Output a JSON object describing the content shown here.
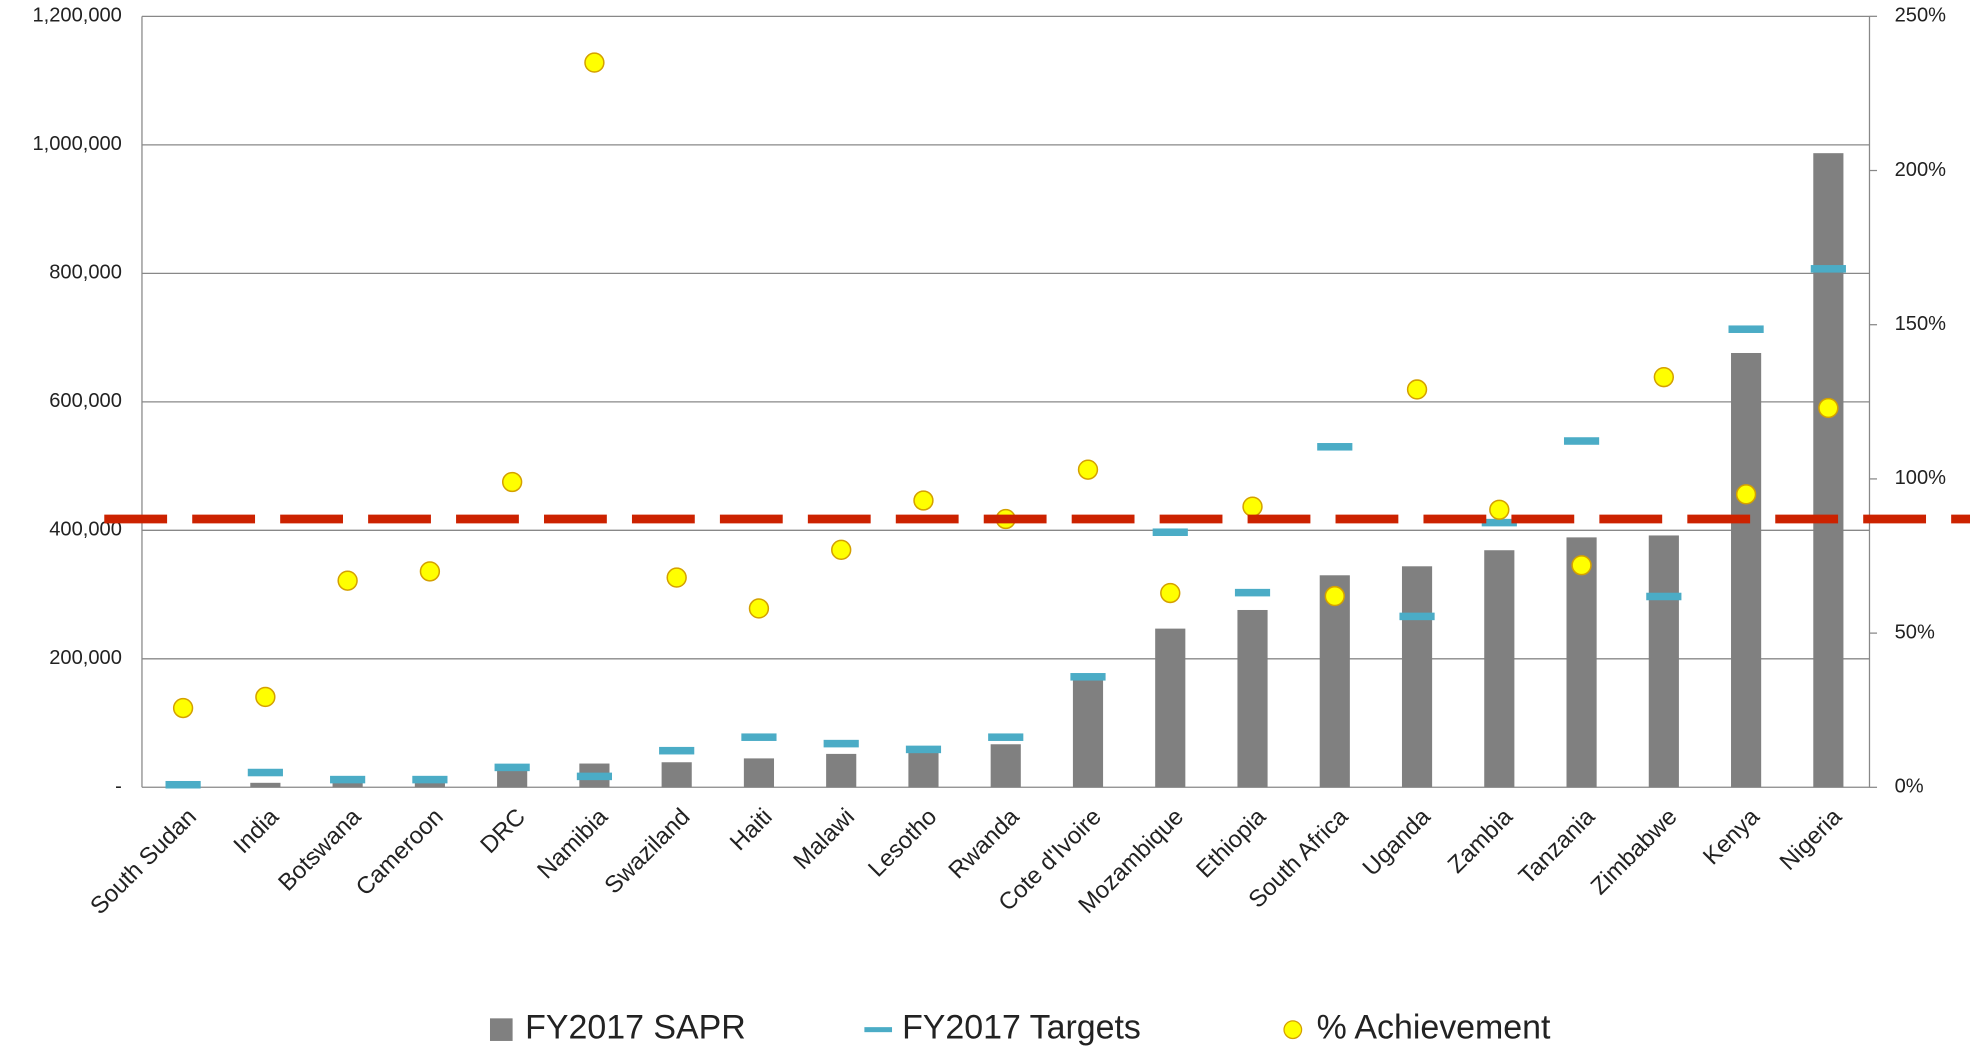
{
  "chart_data": {
    "type": "bar",
    "categories": [
      "South Sudan",
      "India",
      "Botswana",
      "Cameroon",
      "DRC",
      "Namibia",
      "Swaziland",
      "Haiti",
      "Malawi",
      "Lesotho",
      "Rwanda",
      "Cote d'Ivoire",
      "Mozambique",
      "Ethiopia",
      "South Africa",
      "Uganda",
      "Zambia",
      "Tanzania",
      "Zimbabwe",
      "Kenya",
      "Nigeria"
    ],
    "series": [
      {
        "name": "FY2017 SAPR",
        "type": "bar",
        "color": "#808080",
        "values": [
          1000,
          7000,
          8000,
          8000,
          28000,
          37000,
          39000,
          45000,
          52000,
          56000,
          67000,
          170000,
          247000,
          276000,
          330000,
          344000,
          369000,
          389000,
          392000,
          676000,
          987000
        ]
      },
      {
        "name": "FY2017 Targets",
        "type": "dash",
        "color": "#4bacc6",
        "values": [
          4000,
          23000,
          12000,
          12000,
          31000,
          17000,
          57000,
          78000,
          68000,
          59000,
          78000,
          172000,
          397000,
          303000,
          530000,
          266000,
          412000,
          539000,
          297000,
          713000,
          807000
        ]
      },
      {
        "name": "% Achievement",
        "type": "scatter",
        "color": "#ffff00",
        "axis": "y2",
        "values": [
          25.7,
          29.3,
          67,
          70,
          99,
          235,
          68,
          58,
          77,
          93,
          87,
          103,
          63,
          91,
          62,
          129,
          90,
          72,
          133,
          95,
          123
        ]
      }
    ],
    "ylim": [
      0,
      1200000
    ],
    "yticks": [
      {
        "value": 0,
        "label": "-"
      },
      {
        "value": 200000,
        "label": "200,000"
      },
      {
        "value": 400000,
        "label": "400,000"
      },
      {
        "value": 600000,
        "label": "600,000"
      },
      {
        "value": 800000,
        "label": "800,000"
      },
      {
        "value": 1000000,
        "label": "1,000,000"
      },
      {
        "value": 1200000,
        "label": "1,200,000"
      }
    ],
    "y2lim": [
      0,
      250
    ],
    "y2ticks": [
      {
        "value": 0,
        "label": "0%"
      },
      {
        "value": 50,
        "label": "50%"
      },
      {
        "value": 100,
        "label": "100%"
      },
      {
        "value": 150,
        "label": "150%"
      },
      {
        "value": 200,
        "label": "200%"
      },
      {
        "value": 250,
        "label": "250%"
      }
    ],
    "reference_line": {
      "value": 87,
      "axis": "y2",
      "color": "#cc2200"
    },
    "grid": true,
    "legend": "bottom"
  }
}
